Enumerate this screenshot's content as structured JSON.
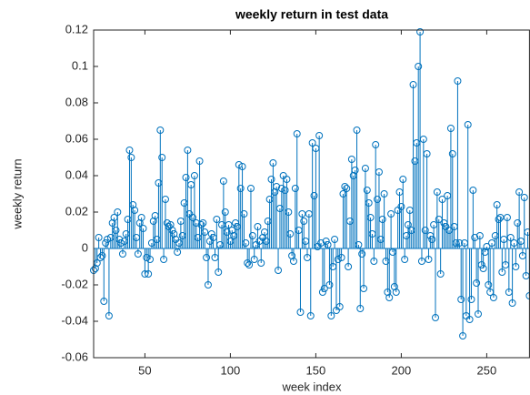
{
  "chart_data": {
    "type": "stem",
    "title": "weekly return in test data",
    "xlabel": "week index",
    "ylabel": "weekly return",
    "color": "#0072bd",
    "xlim": [
      20,
      275
    ],
    "xticks": [
      50,
      100,
      150,
      200,
      250
    ],
    "ylim": [
      -0.06,
      0.12
    ],
    "yticks": [
      -0.06,
      -0.04,
      -0.02,
      0,
      0.02,
      0.04,
      0.06,
      0.08,
      0.1,
      0.12
    ],
    "x": [
      20,
      21,
      22,
      23,
      24,
      25,
      26,
      27,
      28,
      29,
      30,
      31,
      32,
      33,
      34,
      35,
      36,
      37,
      38,
      39,
      40,
      41,
      42,
      43,
      44,
      45,
      46,
      47,
      48,
      49,
      50,
      51,
      52,
      53,
      54,
      55,
      56,
      57,
      58,
      59,
      60,
      61,
      62,
      63,
      64,
      65,
      66,
      67,
      68,
      69,
      70,
      71,
      72,
      73,
      74,
      75,
      76,
      77,
      78,
      79,
      80,
      81,
      82,
      83,
      84,
      85,
      86,
      87,
      88,
      89,
      90,
      91,
      92,
      93,
      94,
      95,
      96,
      97,
      98,
      99,
      100,
      101,
      102,
      103,
      104,
      105,
      106,
      107,
      108,
      109,
      110,
      111,
      112,
      113,
      114,
      115,
      116,
      117,
      118,
      119,
      120,
      121,
      122,
      123,
      124,
      125,
      126,
      127,
      128,
      129,
      130,
      131,
      132,
      133,
      134,
      135,
      136,
      137,
      138,
      139,
      140,
      141,
      142,
      143,
      144,
      145,
      146,
      147,
      148,
      149,
      150,
      151,
      152,
      153,
      154,
      155,
      156,
      157,
      158,
      159,
      160,
      161,
      162,
      163,
      164,
      165,
      166,
      167,
      168,
      169,
      170,
      171,
      172,
      173,
      174,
      175,
      176,
      177,
      178,
      179,
      180,
      181,
      182,
      183,
      184,
      185,
      186,
      187,
      188,
      189,
      190,
      191,
      192,
      193,
      194,
      195,
      196,
      197,
      198,
      199,
      200,
      201,
      202,
      203,
      204,
      205,
      206,
      207,
      208,
      209,
      210,
      211,
      212,
      213,
      214,
      215,
      216,
      217,
      218,
      219,
      220,
      221,
      222,
      223,
      224,
      225,
      226,
      227,
      228,
      229,
      230,
      231,
      232,
      233,
      234,
      235,
      236,
      237,
      238,
      239,
      240,
      241,
      242,
      243,
      244,
      245,
      246,
      247,
      248,
      249,
      250,
      251,
      252,
      253,
      254,
      255,
      256,
      257,
      258,
      259,
      260,
      261,
      262,
      263,
      264,
      265,
      266,
      267,
      268,
      269,
      270,
      271,
      272,
      273,
      274,
      275
    ],
    "values": [
      -0.012,
      -0.011,
      -0.008,
      0.006,
      -0.005,
      -0.004,
      -0.029,
      0.003,
      0.005,
      -0.037,
      0.006,
      0.014,
      0.017,
      0.01,
      0.02,
      0.005,
      0.003,
      -0.003,
      0.004,
      0.008,
      0.016,
      0.054,
      0.05,
      0.024,
      0.021,
      0.006,
      -0.003,
      0.014,
      0.017,
      0.011,
      -0.014,
      -0.005,
      -0.014,
      -0.006,
      0.003,
      0.015,
      0.018,
      0.005,
      0.036,
      0.065,
      0.05,
      -0.006,
      0.027,
      0.014,
      0.012,
      0.013,
      0.01,
      0.008,
      0.005,
      -0.002,
      0.003,
      0.015,
      0.007,
      0.025,
      0.039,
      0.054,
      0.019,
      0.035,
      0.017,
      0.04,
      0.014,
      0.006,
      0.048,
      0.013,
      0.014,
      0.009,
      -0.005,
      -0.02,
      0.004,
      0.008,
      0.006,
      -0.005,
      0.016,
      -0.013,
      0.002,
      0.013,
      0.037,
      0.02,
      0.009,
      0.013,
      0.004,
      0.01,
      0.007,
      0.014,
      0.012,
      0.046,
      0.033,
      0.045,
      0.019,
      0.003,
      -0.008,
      -0.009,
      0.033,
      0.007,
      -0.006,
      0.002,
      0.012,
      0.004,
      -0.008,
      0.006,
      0.009,
      0.004,
      0.015,
      0.027,
      0.038,
      0.047,
      0.031,
      0.034,
      -0.012,
      0.022,
      0.033,
      0.04,
      0.032,
      0.038,
      0.02,
      0.008,
      -0.004,
      -0.007,
      0.033,
      0.063,
      0.01,
      -0.035,
      0.019,
      0.015,
      0.004,
      -0.005,
      0.019,
      -0.037,
      0.058,
      0.029,
      0.055,
      0.001,
      0.062,
      0.003,
      -0.024,
      -0.022,
      0.004,
      0.002,
      -0.02,
      -0.037,
      -0.01,
      0.005,
      -0.034,
      -0.006,
      -0.032,
      -0.005,
      0.03,
      0.034,
      0.033,
      -0.01,
      0.015,
      0.049,
      0.04,
      0.043,
      0.065,
      0.002,
      -0.033,
      -0.003,
      -0.022,
      0.044,
      0.032,
      0.025,
      0.017,
      0.008,
      -0.007,
      0.057,
      0.027,
      0.042,
      0.005,
      0.016,
      0.03,
      -0.007,
      -0.024,
      -0.027,
      0.019,
      -0.002,
      -0.021,
      -0.024,
      0.021,
      0.031,
      0.023,
      0.038,
      -0.006,
      0.007,
      0.013,
      0.021,
      0.01,
      0.09,
      0.048,
      0.058,
      0.1,
      0.119,
      -0.007,
      0.06,
      0.01,
      0.052,
      -0.006,
      0.007,
      0.005,
      0.013,
      -0.038,
      0.031,
      0.016,
      -0.014,
      0.027,
      0.014,
      0.012,
      0.029,
      0.01,
      0.066,
      0.052,
      0.012,
      0.003,
      0.092,
      0.003,
      -0.028,
      -0.048,
      0.003,
      -0.037,
      0.068,
      -0.039,
      -0.028,
      0.032,
      0.006,
      -0.019,
      -0.036,
      0.007,
      -0.009,
      -0.011,
      -0.002,
      0.001,
      -0.02,
      -0.024,
      0.003,
      -0.027,
      0.007,
      0.024,
      0.016,
      0.017,
      -0.013,
      0.005,
      -0.009,
      0.017,
      -0.024,
      0.006,
      -0.03,
      0.003,
      -0.01,
      0.014,
      0.031,
      0.004,
      -0.004,
      0.028,
      -0.015,
      0.009,
      -0.026
    ]
  }
}
